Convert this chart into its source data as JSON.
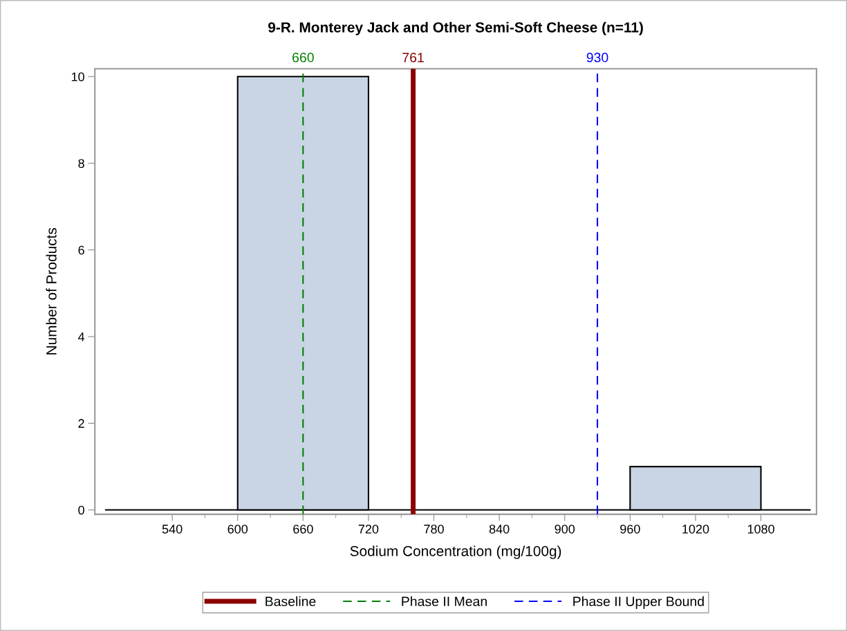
{
  "chart_data": {
    "type": "histogram",
    "title": "9-R. Monterey Jack and Other Semi-Soft Cheese (n=11)",
    "xlabel": "Sodium Concentration (mg/100g)",
    "ylabel": "Number of Products",
    "bins": [
      600,
      720,
      840,
      960,
      1080
    ],
    "values": [
      10,
      0,
      0,
      1
    ],
    "color": "#c9d5e5",
    "xlim": [
      469,
      1131
    ],
    "xticks": [
      540,
      600,
      660,
      720,
      780,
      840,
      900,
      960,
      1020,
      1080
    ],
    "ylim": [
      -0.1,
      10.18
    ],
    "yticks": [
      0,
      2,
      4,
      6,
      8,
      10
    ],
    "ref_lines": [
      {
        "axis": "x",
        "value": 761,
        "label": "Baseline",
        "color": "#8b0000",
        "line_style": "solid"
      },
      {
        "axis": "x",
        "value": 660,
        "label": "Phase II Mean",
        "color": "#008000",
        "line_style": "dashed"
      },
      {
        "axis": "x",
        "value": 930,
        "label": "Phase II Upper Bound",
        "color": "#0000ff",
        "line_style": "dashed"
      }
    ],
    "annotations": [
      {
        "text": "660",
        "x": 660,
        "y": 10.18
      },
      {
        "text": "761",
        "x": 761,
        "y": 10.18
      },
      {
        "text": "930",
        "x": 930,
        "y": 10.18
      }
    ],
    "grid": false,
    "legend": "bottom"
  }
}
